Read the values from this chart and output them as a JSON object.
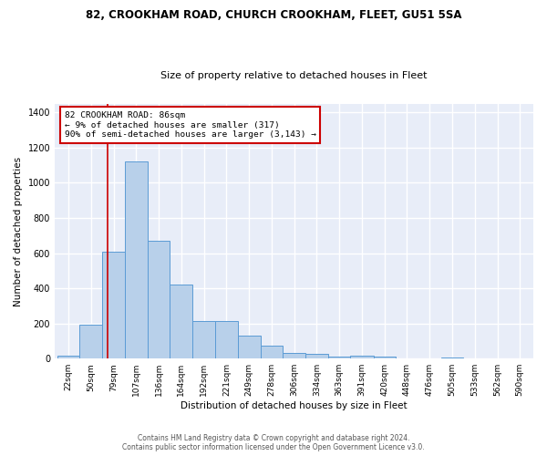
{
  "title1": "82, CROOKHAM ROAD, CHURCH CROOKHAM, FLEET, GU51 5SA",
  "title2": "Size of property relative to detached houses in Fleet",
  "xlabel": "Distribution of detached houses by size in Fleet",
  "ylabel": "Number of detached properties",
  "bar_color": "#b8d0ea",
  "bar_edge_color": "#5b9bd5",
  "background_color": "#e8edf8",
  "grid_color": "#ffffff",
  "categories": [
    "22sqm",
    "50sqm",
    "79sqm",
    "107sqm",
    "136sqm",
    "164sqm",
    "192sqm",
    "221sqm",
    "249sqm",
    "278sqm",
    "306sqm",
    "334sqm",
    "363sqm",
    "391sqm",
    "420sqm",
    "448sqm",
    "476sqm",
    "505sqm",
    "533sqm",
    "562sqm",
    "590sqm"
  ],
  "values": [
    15,
    193,
    610,
    1120,
    670,
    420,
    215,
    215,
    130,
    75,
    33,
    27,
    11,
    15,
    10,
    0,
    0,
    8,
    0,
    0,
    0
  ],
  "ylim": [
    0,
    1450
  ],
  "yticks": [
    0,
    200,
    400,
    600,
    800,
    1000,
    1200,
    1400
  ],
  "bin_edges": [
    22,
    50,
    79,
    107,
    136,
    164,
    192,
    221,
    249,
    278,
    306,
    334,
    363,
    391,
    420,
    448,
    476,
    505,
    533,
    562,
    590,
    618
  ],
  "property_sqm": 86,
  "annotation_text": "82 CROOKHAM ROAD: 86sqm\n← 9% of detached houses are smaller (317)\n90% of semi-detached houses are larger (3,143) →",
  "footer1": "Contains HM Land Registry data © Crown copyright and database right 2024.",
  "footer2": "Contains public sector information licensed under the Open Government Licence v3.0.",
  "red_line_color": "#cc0000",
  "title1_fontsize": 8.5,
  "title2_fontsize": 8.0,
  "xlabel_fontsize": 7.5,
  "ylabel_fontsize": 7.5,
  "tick_fontsize": 6.5,
  "ytick_fontsize": 7.0,
  "footer_fontsize": 5.5,
  "annotation_fontsize": 6.8
}
